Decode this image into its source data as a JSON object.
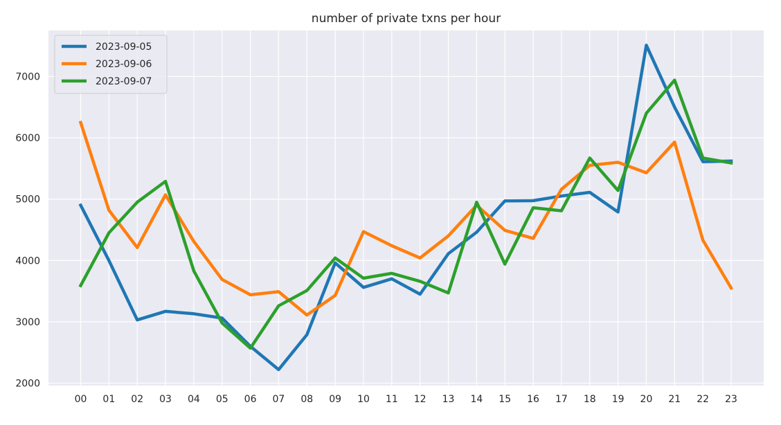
{
  "chart_data": {
    "type": "line",
    "title": "number of private txns per hour",
    "xlabel": "",
    "ylabel": "",
    "categories": [
      "00",
      "01",
      "02",
      "03",
      "04",
      "05",
      "06",
      "07",
      "08",
      "09",
      "10",
      "11",
      "12",
      "13",
      "14",
      "15",
      "16",
      "17",
      "18",
      "19",
      "20",
      "21",
      "22",
      "23"
    ],
    "yticks": [
      2000,
      3000,
      4000,
      5000,
      6000,
      7000
    ],
    "ylim": [
      1960,
      7750
    ],
    "grid": true,
    "legend_position": "top-left",
    "series": [
      {
        "name": "2023-09-05",
        "color": "#1f77b4",
        "values": [
          4900,
          4000,
          3030,
          3170,
          3130,
          3060,
          2600,
          2220,
          2790,
          3960,
          3560,
          3700,
          3450,
          4110,
          4460,
          4970,
          4975,
          5050,
          5110,
          4790,
          7510,
          6500,
          5610,
          5620
        ]
      },
      {
        "name": "2023-09-06",
        "color": "#ff7f0e",
        "values": [
          6250,
          4820,
          4210,
          5070,
          4310,
          3690,
          3440,
          3490,
          3110,
          3430,
          4470,
          4240,
          4040,
          4400,
          4900,
          4490,
          4360,
          5160,
          5550,
          5600,
          5430,
          5930,
          4330,
          3550
        ]
      },
      {
        "name": "2023-09-07",
        "color": "#2ca02c",
        "values": [
          3590,
          4450,
          4950,
          5290,
          3830,
          2980,
          2570,
          3260,
          3510,
          4040,
          3710,
          3790,
          3660,
          3470,
          4950,
          3940,
          4860,
          4810,
          5670,
          5140,
          6400,
          6940,
          5670,
          5590
        ]
      }
    ]
  }
}
